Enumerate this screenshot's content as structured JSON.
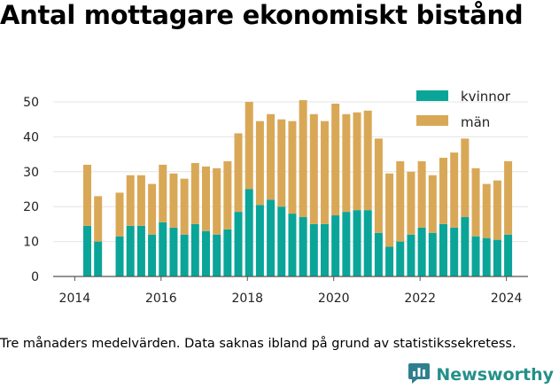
{
  "title": "Antal mottagare ekonomiskt bistånd",
  "footnote": "Tre månaders medelvärden. Data saknas ibland på grund av statistikssekretess.",
  "brand": {
    "name": "Newsworthy",
    "icon": "newsworthy-logo-icon"
  },
  "colors": {
    "kvinnor": "#0aa598",
    "man": "#d9a857",
    "grid": "#e4e4e4"
  },
  "chart_data": {
    "type": "bar",
    "stacked": true,
    "title": "Antal mottagare ekonomiskt bistånd",
    "x_ticks": [
      "2014",
      "2016",
      "2018",
      "2020",
      "2022",
      "2024"
    ],
    "y_ticks": [
      "0",
      "10",
      "20",
      "30",
      "40",
      "50"
    ],
    "ylim": [
      0,
      50
    ],
    "xlim": [
      2013.5,
      2024.5
    ],
    "legend_position": "top-right",
    "grid": true,
    "x": [
      2014.29,
      2014.54,
      2015.04,
      2015.29,
      2015.54,
      2015.79,
      2016.04,
      2016.29,
      2016.54,
      2016.79,
      2017.04,
      2017.29,
      2017.54,
      2017.79,
      2018.04,
      2018.29,
      2018.54,
      2018.79,
      2019.04,
      2019.29,
      2019.54,
      2019.79,
      2020.04,
      2020.29,
      2020.54,
      2020.79,
      2021.04,
      2021.29,
      2021.54,
      2021.79,
      2022.04,
      2022.29,
      2022.54,
      2022.79,
      2023.04,
      2023.29,
      2023.54,
      2023.79,
      2024.04
    ],
    "series": [
      {
        "name": "kvinnor",
        "values": [
          14.5,
          10,
          11.5,
          14.5,
          14.5,
          12,
          15.5,
          14,
          12,
          15,
          13,
          12,
          13.5,
          18.5,
          25,
          20.5,
          22,
          20,
          18,
          17,
          15,
          15,
          17.5,
          18.5,
          19,
          19,
          12.5,
          8.5,
          10,
          12,
          14,
          12.5,
          15,
          14,
          17,
          11.5,
          11,
          10.5,
          12
        ]
      },
      {
        "name": "män",
        "values": [
          17.5,
          13,
          12.5,
          14.5,
          14.5,
          14.5,
          16.5,
          15.5,
          16,
          17.5,
          18.5,
          19,
          19.5,
          22.5,
          25,
          24,
          24.5,
          25,
          26.5,
          33.5,
          31.5,
          29.5,
          32,
          28,
          28,
          28.5,
          27,
          21,
          23,
          18,
          19,
          16.5,
          19,
          21.5,
          22.5,
          19.5,
          15.5,
          17,
          21
        ]
      }
    ]
  }
}
